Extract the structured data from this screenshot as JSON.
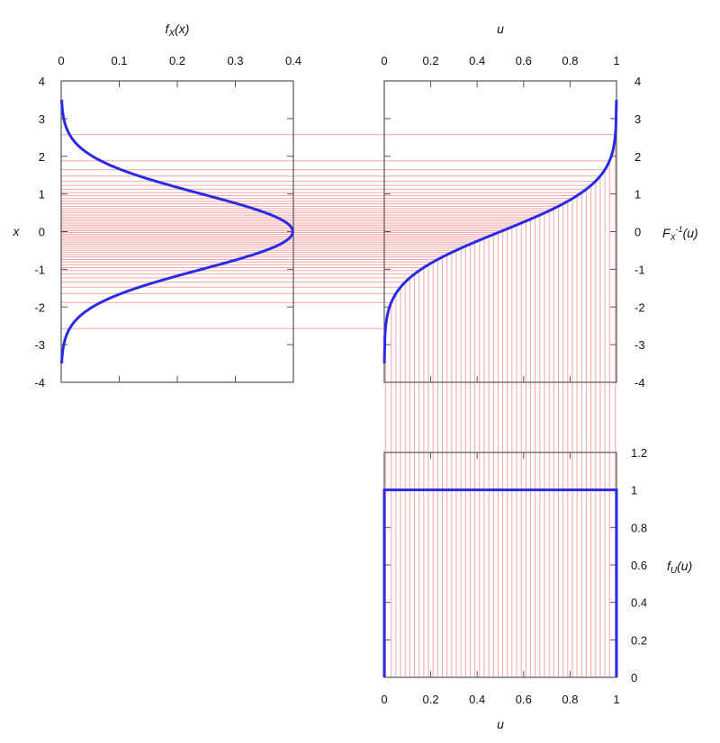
{
  "colors": {
    "curve": "#2a2ae6",
    "sample_lines": "#f4a6a6",
    "frame": "#555555",
    "text": "#111111"
  },
  "chart_data": [
    {
      "panel": "density",
      "type": "line",
      "top_axis_label": "f_X(x)",
      "left_axis_label": "x",
      "x_ticks": [
        "0",
        "0.1",
        "0.2",
        "0.3",
        "0.4"
      ],
      "y_ticks": [
        "4",
        "3",
        "2",
        "1",
        "0",
        "-1",
        "-2",
        "-3",
        "-4"
      ],
      "xlim": [
        0,
        0.4
      ],
      "ylim": [
        -4,
        4
      ],
      "curve": "standard normal density f_X(x) plotted against x",
      "curve_x_range": [
        -3.5,
        3.5
      ],
      "orientation": "horizontal density, x on vertical axis",
      "grid": false
    },
    {
      "panel": "quantile",
      "type": "line",
      "top_axis_label": "u",
      "right_axis_label": "F_X^-1(u)",
      "x_ticks": [
        "0",
        "0.2",
        "0.4",
        "0.6",
        "0.8",
        "1"
      ],
      "y_ticks": [
        "4",
        "3",
        "2",
        "1",
        "0",
        "-1",
        "-2",
        "-3",
        "-4"
      ],
      "xlim": [
        0,
        1
      ],
      "ylim": [
        -4,
        4
      ],
      "curve": "inverse CDF of the standard normal",
      "curve_u_range": [
        0.00023,
        0.99977
      ],
      "grid": false
    },
    {
      "panel": "uniform",
      "type": "line",
      "bottom_axis_label": "u",
      "right_axis_label": "f_U(u)",
      "x_ticks": [
        "0",
        "0.2",
        "0.4",
        "0.6",
        "0.8",
        "1"
      ],
      "y_ticks": [
        "1.2",
        "1",
        "0.8",
        "0.6",
        "0.4",
        "0.2",
        "0"
      ],
      "xlim": [
        0,
        1
      ],
      "ylim": [
        0,
        1.2
      ],
      "series": [
        {
          "x": [
            0,
            0,
            1,
            1
          ],
          "y": [
            0,
            1,
            1,
            0
          ]
        }
      ],
      "grid": false
    }
  ],
  "sample_u": [
    0.005,
    0.03,
    0.05,
    0.07,
    0.09,
    0.11,
    0.13,
    0.15,
    0.17,
    0.19,
    0.21,
    0.23,
    0.25,
    0.27,
    0.29,
    0.31,
    0.33,
    0.35,
    0.37,
    0.39,
    0.41,
    0.43,
    0.45,
    0.47,
    0.49,
    0.51,
    0.53,
    0.55,
    0.57,
    0.59,
    0.61,
    0.63,
    0.65,
    0.67,
    0.69,
    0.71,
    0.73,
    0.75,
    0.77,
    0.79,
    0.81,
    0.83,
    0.85,
    0.87,
    0.89,
    0.91,
    0.93,
    0.95,
    0.97,
    0.995
  ]
}
